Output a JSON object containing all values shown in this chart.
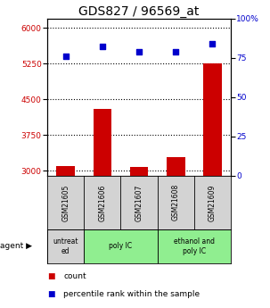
{
  "title": "GDS827 / 96569_at",
  "samples": [
    "GSM21605",
    "GSM21606",
    "GSM21607",
    "GSM21608",
    "GSM21609"
  ],
  "count_values": [
    3100,
    4300,
    3080,
    3280,
    5250
  ],
  "percentile_values": [
    76,
    82,
    79,
    79,
    84
  ],
  "ylim_left": [
    2900,
    6200
  ],
  "ylim_right": [
    0,
    100
  ],
  "yticks_left": [
    3000,
    3750,
    4500,
    5250,
    6000
  ],
  "yticks_right": [
    0,
    25,
    50,
    75,
    100
  ],
  "bar_color": "#cc0000",
  "dot_color": "#0000cc",
  "agent_groups": [
    {
      "label": "untreat\ned",
      "start": 0,
      "end": 1,
      "color": "#d3d3d3"
    },
    {
      "label": "poly IC",
      "start": 1,
      "end": 3,
      "color": "#90ee90"
    },
    {
      "label": "ethanol and\npoly IC",
      "start": 3,
      "end": 5,
      "color": "#90ee90"
    }
  ],
  "tick_label_color_left": "#cc0000",
  "tick_label_color_right": "#0000cc",
  "background_color": "#ffffff",
  "plot_bg_color": "#ffffff",
  "title_fontsize": 10,
  "sample_bg_color": "#d3d3d3"
}
